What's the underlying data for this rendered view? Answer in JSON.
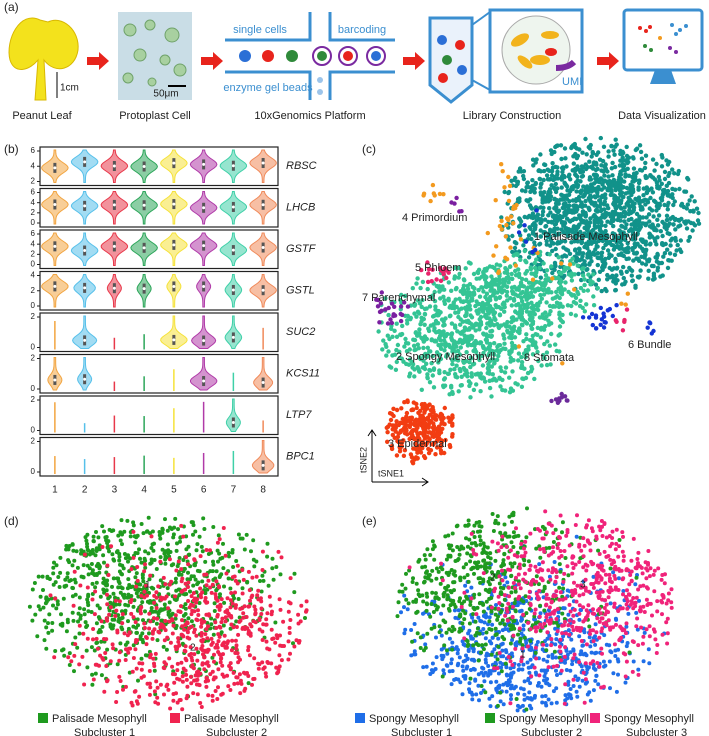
{
  "panel_a": {
    "label": "(a)",
    "steps": [
      {
        "caption": "Peanut Leaf",
        "scale": "1cm"
      },
      {
        "caption": "Protoplast Cell",
        "scale": "50μm"
      },
      {
        "caption": "10xGenomics Platform",
        "labels": [
          "single cells",
          "barcoding",
          "enzyme gel beads"
        ]
      },
      {
        "caption": "Library Construction",
        "labels": [
          "UMI"
        ]
      },
      {
        "caption": "Data Visualization"
      }
    ]
  },
  "panel_b": {
    "label": "(b)",
    "clusters": [
      "1",
      "2",
      "3",
      "4",
      "5",
      "6",
      "7",
      "8"
    ],
    "cluster_colors": [
      "#f2a541",
      "#56c0ea",
      "#e8384a",
      "#2ca65a",
      "#f5e23a",
      "#b03aa8",
      "#3fd0a8",
      "#f08a5a"
    ],
    "genes": [
      {
        "name": "RBSC",
        "yticks": [
          2,
          4,
          6
        ]
      },
      {
        "name": "LHCB",
        "yticks": [
          0,
          2,
          4,
          6
        ]
      },
      {
        "name": "GSTF",
        "yticks": [
          0,
          2,
          4,
          6
        ]
      },
      {
        "name": "GSTL",
        "yticks": [
          0,
          2,
          4
        ]
      },
      {
        "name": "SUC2",
        "yticks": [
          0,
          2
        ]
      },
      {
        "name": "KCS11",
        "yticks": [
          0,
          2
        ]
      },
      {
        "name": "LTP7",
        "yticks": [
          0,
          2
        ]
      },
      {
        "name": "BPC1",
        "yticks": [
          0,
          2
        ]
      }
    ]
  },
  "panel_c": {
    "label": "(c)",
    "clusters": [
      {
        "name": "1 Palisade Mesophyll",
        "color": "#11928a"
      },
      {
        "name": "2 Spongy Mesophyll",
        "color": "#34c494"
      },
      {
        "name": "3 Epidermal",
        "color": "#f23d12"
      },
      {
        "name": "4 Primordium",
        "color": "#f39a1f"
      },
      {
        "name": "5 Phloem",
        "color": "#e8246b"
      },
      {
        "name": "6 Bundle",
        "color": "#1434d4"
      },
      {
        "name": "7 Parenchymal",
        "color": "#7a1fa0"
      },
      {
        "name": "8 Stomata",
        "color": "#6b2a9a"
      }
    ],
    "x_axis": "tSNE1",
    "y_axis": "tSNE2"
  },
  "panel_d": {
    "label": "(d)",
    "subclusters": [
      {
        "id": "1",
        "legend": [
          "Palisade Mesophyll",
          "Subcluster 1"
        ],
        "color": "#1f9a1f"
      },
      {
        "id": "2",
        "legend": [
          "Palisade Mesophyll",
          "Subcluster 2"
        ],
        "color": "#f0234f"
      }
    ]
  },
  "panel_e": {
    "label": "(e)",
    "subclusters": [
      {
        "id": "1",
        "legend": [
          "Spongy Mesophyll",
          "Subcluster 1"
        ],
        "color": "#1f6ee8"
      },
      {
        "id": "2",
        "legend": [
          "Spongy Mesophyll",
          "Subcluster 2"
        ],
        "color": "#1f9a1f"
      },
      {
        "id": "3",
        "legend": [
          "Spongy Mesophyll",
          "Subcluster 3"
        ],
        "color": "#f0237a"
      }
    ]
  }
}
